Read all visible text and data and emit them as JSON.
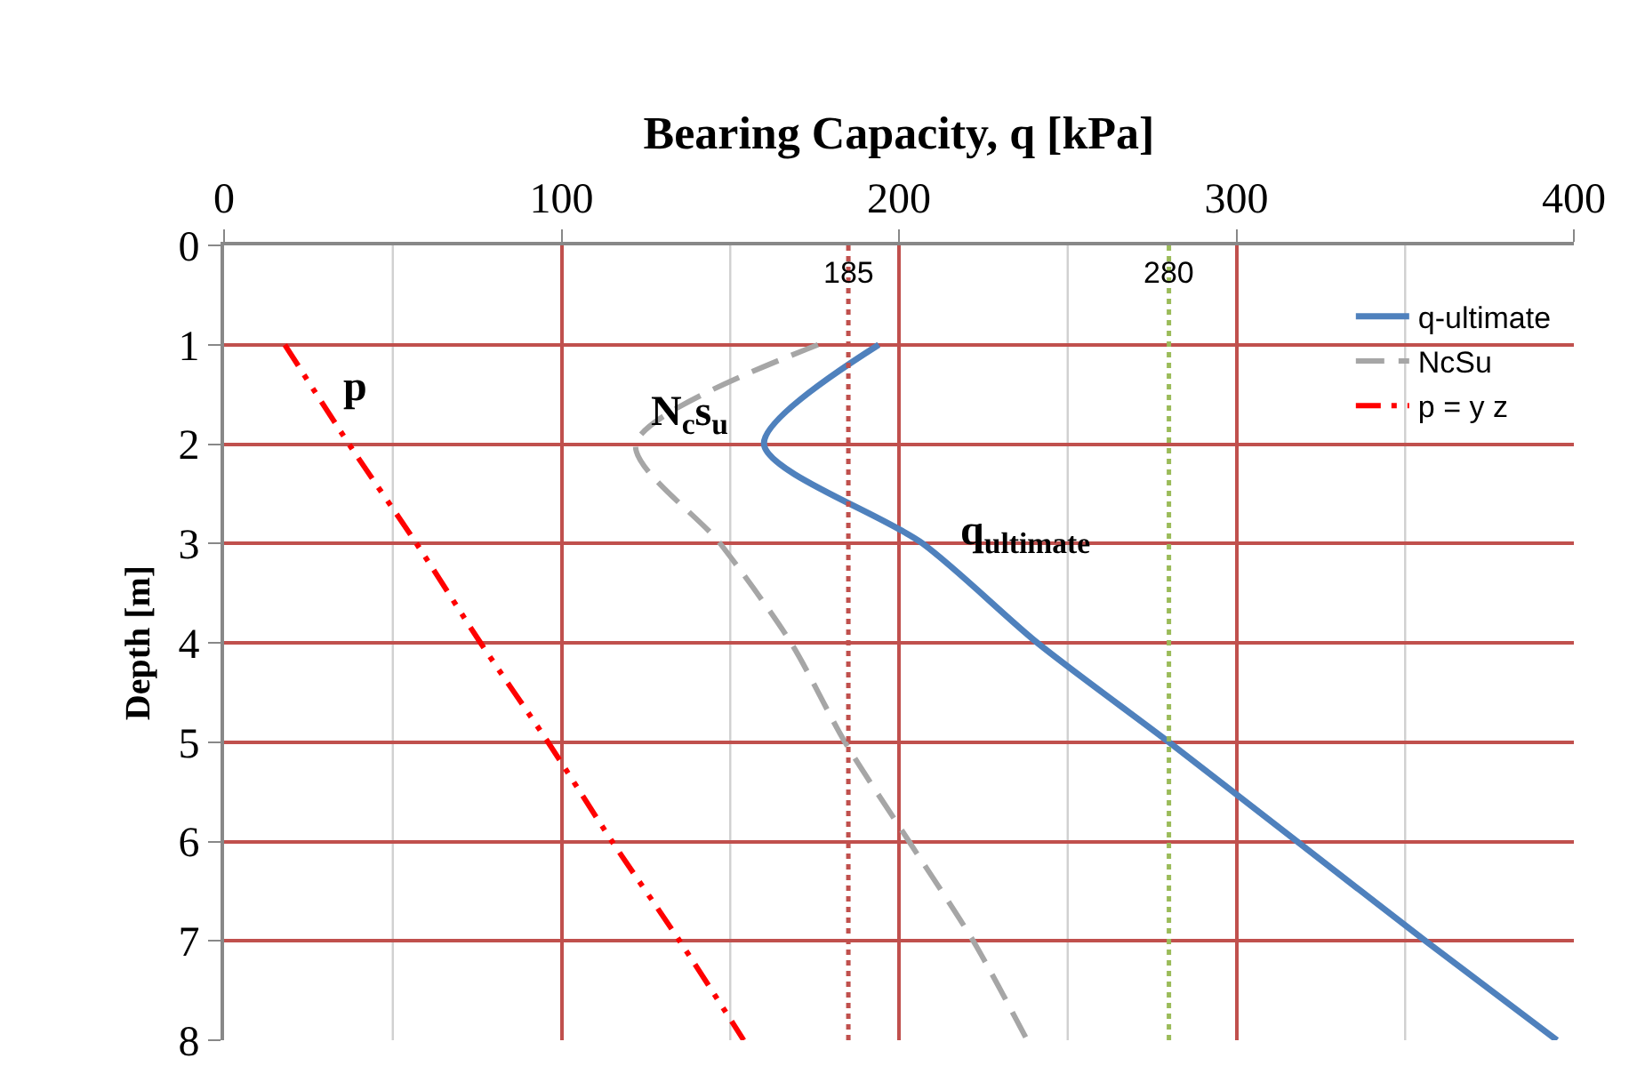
{
  "chart_data": {
    "type": "line",
    "xlabel": "Bearing Capacity, q [kPa]",
    "ylabel": "Depth [m]",
    "series": [
      {
        "name": "q-ultimate",
        "color": "#4f81bd",
        "line_style": "solid",
        "x": [
          194,
          160,
          207,
          241,
          280,
          318,
          356,
          395
        ],
        "values": [
          1,
          2,
          3,
          4,
          5,
          6,
          7,
          8
        ]
      },
      {
        "name": "NcSu",
        "color": "#a6a6a6",
        "line_style": "dashed",
        "x": [
          176,
          122,
          147,
          168,
          184,
          203,
          222,
          238
        ],
        "values": [
          1,
          2,
          3,
          4,
          5,
          6,
          7,
          8
        ]
      },
      {
        "name": "p = y z",
        "color": "#ff0000",
        "line_style": "dashdotdot",
        "x": [
          18,
          37,
          57,
          76,
          96,
          115,
          135,
          154
        ],
        "values": [
          1,
          2,
          3,
          4,
          5,
          6,
          7,
          8
        ]
      }
    ],
    "xlim": [
      0,
      400
    ],
    "xticks": [
      0,
      {
        "value": 50,
        "label": null
      },
      100,
      {
        "value": 150,
        "label": null
      },
      200,
      {
        "value": 250,
        "label": null
      },
      300,
      {
        "value": 350,
        "label": null
      },
      400
    ],
    "ylim": [
      8,
      0
    ],
    "yticks": [
      0,
      1,
      2,
      3,
      4,
      5,
      6,
      7,
      8
    ],
    "ref_lines": [
      {
        "axis": "x",
        "value": 185,
        "label": "185",
        "color": "#c0504d",
        "line_style": "dotted"
      },
      {
        "axis": "x",
        "value": 280,
        "label": "280",
        "color": "#9bbb59",
        "line_style": "dotted"
      }
    ],
    "annotations": [
      {
        "text": "p",
        "x": 31,
        "y": 1.7
      },
      {
        "text": "N$_{c}$s$_{u}$",
        "x": 122,
        "y": 2
      },
      {
        "text": "q$_{ultimate}$",
        "x": 214,
        "y": 3.2
      }
    ],
    "grid": true,
    "legend": "top right",
    "marker": "none"
  }
}
